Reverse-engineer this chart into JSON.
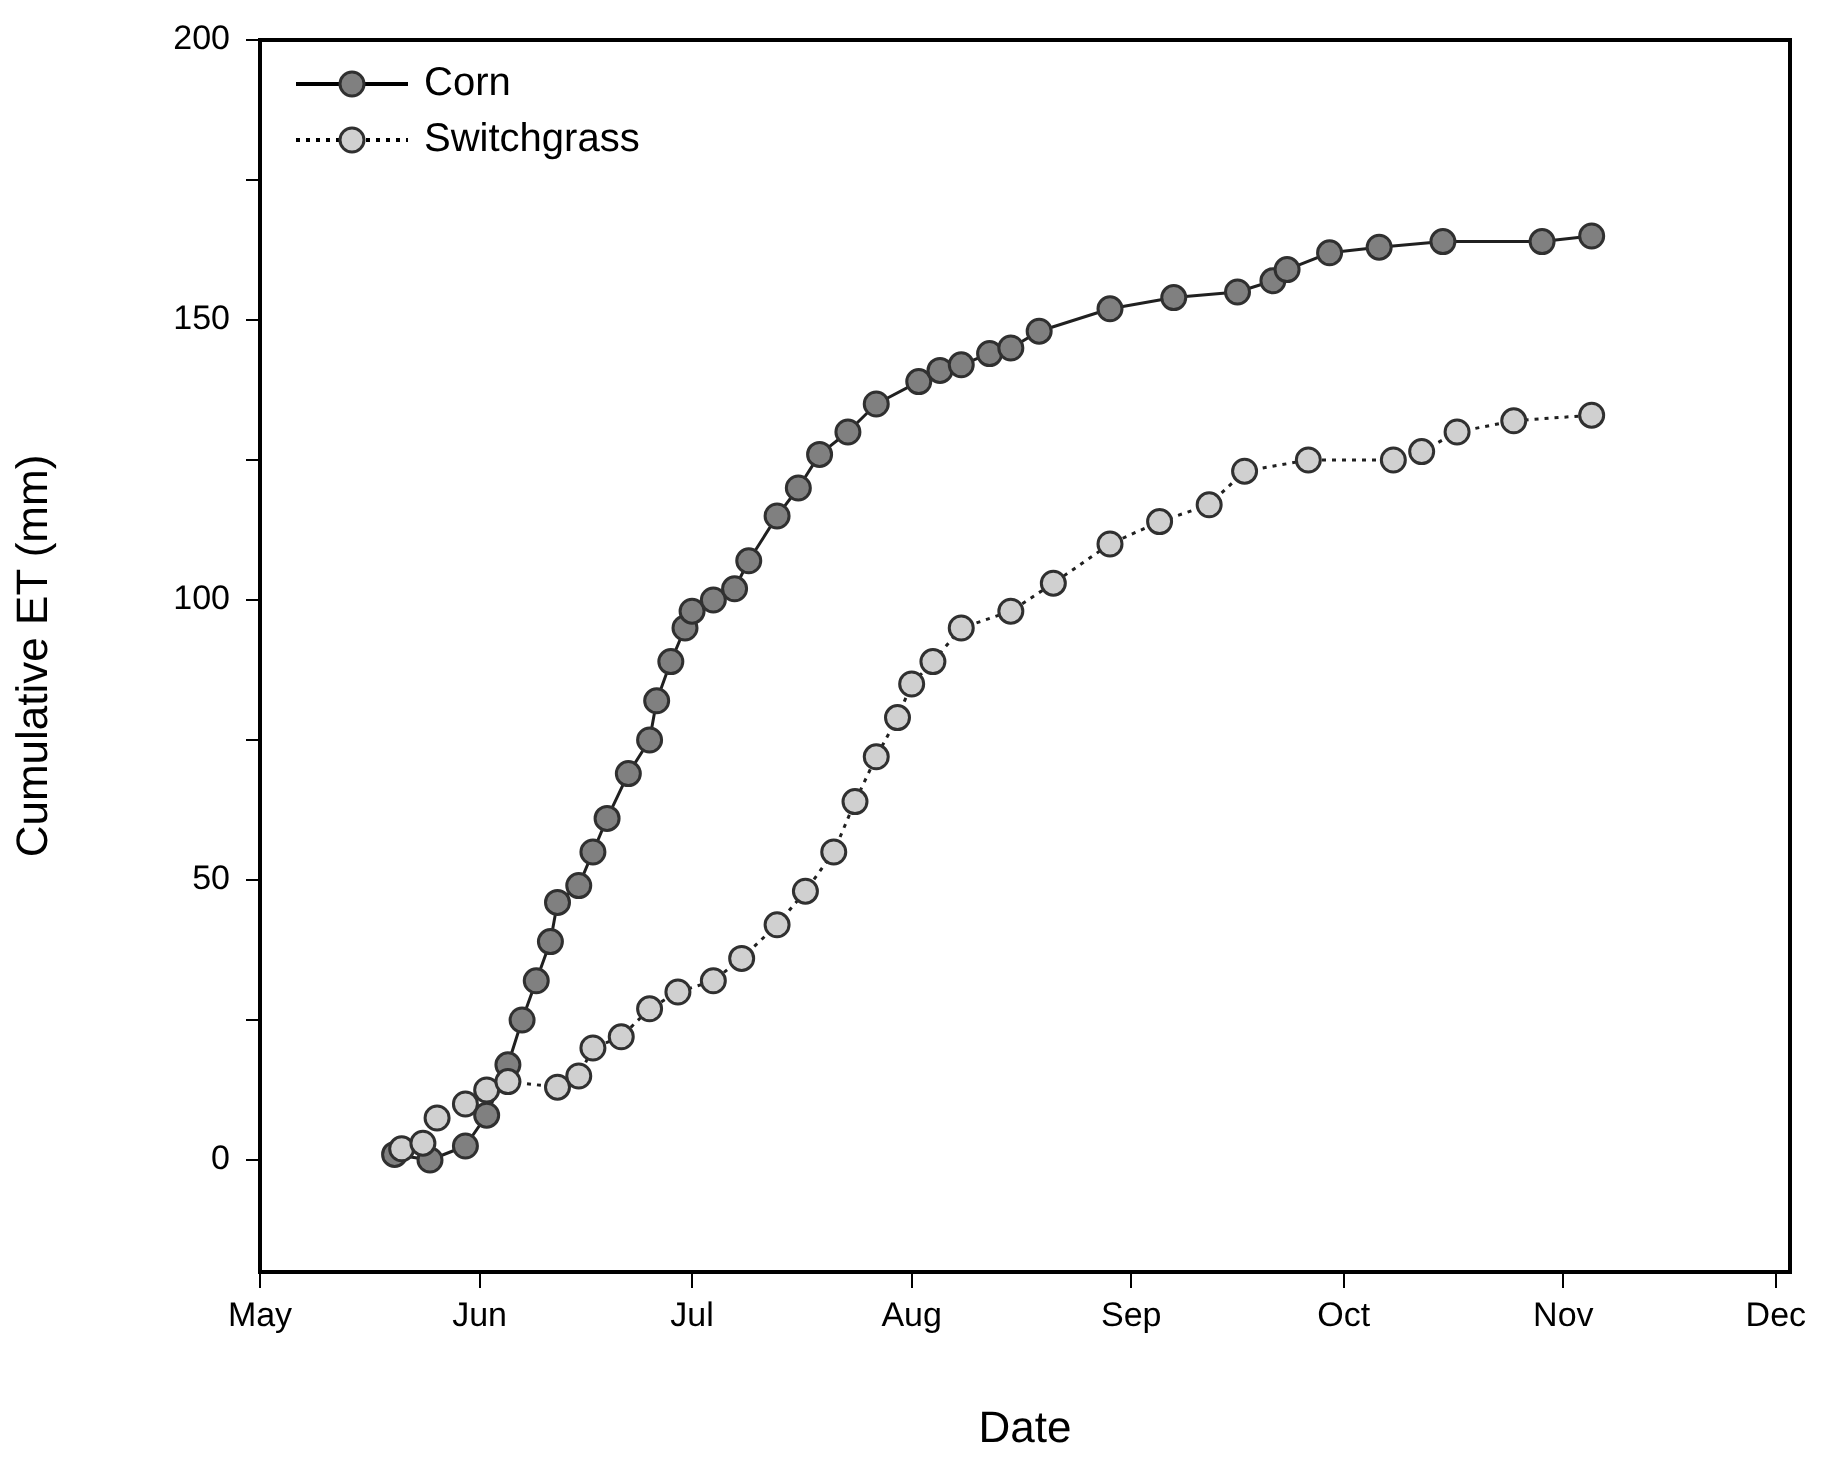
{
  "chart_data": {
    "type": "line",
    "xlabel": "Date",
    "ylabel": "Cumulative ET (mm)",
    "xlim": [
      "--05-01",
      "--12-03"
    ],
    "xticks": [
      {
        "value": "--05-01",
        "label": "May"
      },
      {
        "value": "--06-01",
        "label": "Jun"
      },
      {
        "value": "--07-01",
        "label": "Jul"
      },
      {
        "value": "--08-01",
        "label": "Aug"
      },
      {
        "value": "--09-01",
        "label": "Sep"
      },
      {
        "value": "--10-01",
        "label": "Oct"
      },
      {
        "value": "--11-01",
        "label": "Nov"
      },
      {
        "value": "--12-01",
        "label": "Dec"
      }
    ],
    "ylim": [
      -20,
      200
    ],
    "yticks": [
      0,
      {
        "value": 25,
        "label": null
      },
      50,
      {
        "value": 75,
        "label": null
      },
      100,
      {
        "value": 125,
        "label": null
      },
      150,
      {
        "value": 175,
        "label": null
      },
      200
    ],
    "grid": false,
    "legend": "top left",
    "marker": "circle",
    "series": [
      {
        "name": "Corn",
        "color": "#808080",
        "line_style": "solid",
        "x": [
          "--05-20",
          "--05-25",
          "--05-30",
          "--06-02",
          "--06-05",
          "--06-07",
          "--06-09",
          "--06-11",
          "--06-12",
          "--06-15",
          "--06-17",
          "--06-19",
          "--06-22",
          "--06-25",
          "--06-26",
          "--06-28",
          "--06-30",
          "--07-01",
          "--07-04",
          "--07-07",
          "--07-09",
          "--07-13",
          "--07-16",
          "--07-19",
          "--07-23",
          "--07-27",
          "--08-02",
          "--08-05",
          "--08-08",
          "--08-12",
          "--08-15",
          "--08-19",
          "--08-29",
          "--09-07",
          "--09-16",
          "--09-21",
          "--09-23",
          "--09-29",
          "--10-06",
          "--10-15",
          "--10-29",
          "--11-05"
        ],
        "values": [
          1,
          0,
          2.5,
          8,
          17,
          25,
          32,
          39,
          46,
          49,
          55,
          61,
          69,
          75,
          82,
          89,
          95,
          98,
          100,
          102,
          107,
          115,
          120,
          126,
          130,
          135,
          139,
          141,
          142,
          144,
          145,
          148,
          152,
          154,
          155,
          157,
          159,
          162,
          163,
          164,
          164,
          165
        ]
      },
      {
        "name": "Switchgrass",
        "color": "#d0d0d0",
        "line_style": "dotted",
        "x": [
          "--05-21",
          "--05-24",
          "--05-26",
          "--05-30",
          "--06-02",
          "--06-05",
          "--06-12",
          "--06-15",
          "--06-17",
          "--06-21",
          "--06-25",
          "--06-29",
          "--07-04",
          "--07-08",
          "--07-13",
          "--07-17",
          "--07-21",
          "--07-24",
          "--07-27",
          "--07-30",
          "--08-01",
          "--08-04",
          "--08-08",
          "--08-15",
          "--08-21",
          "--08-29",
          "--09-05",
          "--09-12",
          "--09-17",
          "--09-26",
          "--10-08",
          "--10-12",
          "--10-17",
          "--10-25",
          "--11-05"
        ],
        "values": [
          2,
          3,
          7.5,
          10,
          12.5,
          14,
          13,
          15,
          20,
          22,
          27,
          30,
          32,
          36,
          42,
          48,
          55,
          64,
          72,
          79,
          85,
          89,
          95,
          98,
          103,
          110,
          114,
          117,
          123,
          125,
          125,
          126.5,
          130,
          132,
          133
        ]
      }
    ]
  }
}
